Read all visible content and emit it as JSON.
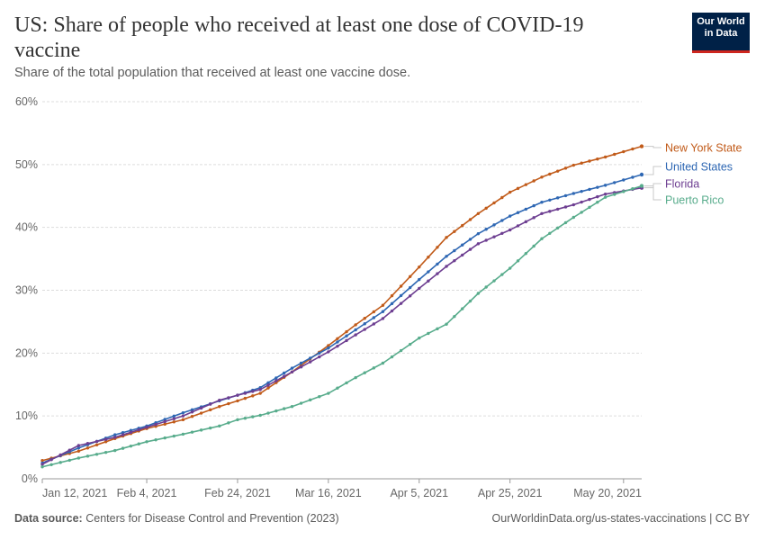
{
  "header": {
    "title": "US: Share of people who received at least one dose of COVID-19 vaccine",
    "subtitle": "Share of the total population that received at least one vaccine dose.",
    "logo_line1": "Our World",
    "logo_line2": "in Data"
  },
  "footer": {
    "source_label": "Data source:",
    "source_text": "Centers for Disease Control and Prevention (2023)",
    "url_text": "OurWorldinData.org/us-states-vaccinations | CC BY"
  },
  "colors": {
    "new_york_state": "#c15b1a",
    "united_states": "#2e67b3",
    "florida": "#6d3e91",
    "puerto_rico": "#58ac8c",
    "grid": "#dddddd",
    "axis_text": "#666666"
  },
  "chart_data": {
    "type": "line",
    "title": "US: Share of people who received at least one dose of COVID-19 vaccine",
    "subtitle": "Share of the total population that received at least one vaccine dose.",
    "x_start_date": "2021-01-12",
    "x_end_date": "2021-05-24",
    "xticks": [
      "Jan 12, 2021",
      "Feb 4, 2021",
      "Feb 24, 2021",
      "Mar 16, 2021",
      "Apr 5, 2021",
      "Apr 25, 2021",
      "May 20, 2021"
    ],
    "yticks": [
      "0%",
      "10%",
      "20%",
      "30%",
      "40%",
      "50%",
      "60%"
    ],
    "ylim": [
      0,
      60
    ],
    "y_unit": "%",
    "grid": "horizontal dashed",
    "legend": "line-end labels at right",
    "series": [
      {
        "name": "New York State",
        "color": "#c15b1a",
        "points": [
          [
            "2021-01-12",
            2.9
          ],
          [
            "2021-01-20",
            4.4
          ],
          [
            "2021-01-28",
            6.4
          ],
          [
            "2021-02-04",
            8.0
          ],
          [
            "2021-02-12",
            9.4
          ],
          [
            "2021-02-20",
            11.5
          ],
          [
            "2021-02-24",
            12.4
          ],
          [
            "2021-03-01",
            13.6
          ],
          [
            "2021-03-08",
            17.0
          ],
          [
            "2021-03-16",
            21.2
          ],
          [
            "2021-03-22",
            24.5
          ],
          [
            "2021-03-28",
            27.6
          ],
          [
            "2021-04-05",
            33.7
          ],
          [
            "2021-04-11",
            38.4
          ],
          [
            "2021-04-18",
            42.2
          ],
          [
            "2021-04-25",
            45.6
          ],
          [
            "2021-05-02",
            48.0
          ],
          [
            "2021-05-09",
            49.9
          ],
          [
            "2021-05-16",
            51.2
          ],
          [
            "2021-05-24",
            52.9
          ]
        ]
      },
      {
        "name": "United States",
        "color": "#2e67b3",
        "points": [
          [
            "2021-01-12",
            2.5
          ],
          [
            "2021-01-20",
            4.9
          ],
          [
            "2021-01-28",
            7.0
          ],
          [
            "2021-02-04",
            8.4
          ],
          [
            "2021-02-12",
            10.5
          ],
          [
            "2021-02-20",
            12.4
          ],
          [
            "2021-02-24",
            13.3
          ],
          [
            "2021-03-01",
            14.5
          ],
          [
            "2021-03-08",
            17.6
          ],
          [
            "2021-03-16",
            20.8
          ],
          [
            "2021-03-22",
            23.7
          ],
          [
            "2021-03-28",
            26.6
          ],
          [
            "2021-04-05",
            31.7
          ],
          [
            "2021-04-11",
            35.4
          ],
          [
            "2021-04-18",
            39.0
          ],
          [
            "2021-04-25",
            41.8
          ],
          [
            "2021-05-02",
            44.0
          ],
          [
            "2021-05-09",
            45.4
          ],
          [
            "2021-05-16",
            46.7
          ],
          [
            "2021-05-24",
            48.4
          ]
        ]
      },
      {
        "name": "Florida",
        "color": "#6d3e91",
        "points": [
          [
            "2021-01-12",
            2.3
          ],
          [
            "2021-01-20",
            5.3
          ],
          [
            "2021-01-28",
            6.6
          ],
          [
            "2021-02-04",
            8.2
          ],
          [
            "2021-02-12",
            10.0
          ],
          [
            "2021-02-20",
            12.5
          ],
          [
            "2021-02-24",
            13.3
          ],
          [
            "2021-03-01",
            14.2
          ],
          [
            "2021-03-08",
            17.0
          ],
          [
            "2021-03-16",
            20.2
          ],
          [
            "2021-03-22",
            22.9
          ],
          [
            "2021-03-28",
            25.5
          ],
          [
            "2021-04-05",
            30.3
          ],
          [
            "2021-04-11",
            33.8
          ],
          [
            "2021-04-18",
            37.4
          ],
          [
            "2021-04-25",
            39.6
          ],
          [
            "2021-05-02",
            42.2
          ],
          [
            "2021-05-09",
            43.6
          ],
          [
            "2021-05-16",
            45.3
          ],
          [
            "2021-05-24",
            46.3
          ]
        ]
      },
      {
        "name": "Puerto Rico",
        "color": "#58ac8c",
        "points": [
          [
            "2021-01-12",
            1.9
          ],
          [
            "2021-01-20",
            3.3
          ],
          [
            "2021-01-28",
            4.5
          ],
          [
            "2021-02-04",
            5.9
          ],
          [
            "2021-02-12",
            7.1
          ],
          [
            "2021-02-20",
            8.4
          ],
          [
            "2021-02-24",
            9.4
          ],
          [
            "2021-03-01",
            10.1
          ],
          [
            "2021-03-08",
            11.5
          ],
          [
            "2021-03-16",
            13.6
          ],
          [
            "2021-03-22",
            16.1
          ],
          [
            "2021-03-28",
            18.4
          ],
          [
            "2021-04-05",
            22.4
          ],
          [
            "2021-04-11",
            24.6
          ],
          [
            "2021-04-18",
            29.5
          ],
          [
            "2021-04-25",
            33.5
          ],
          [
            "2021-05-02",
            38.2
          ],
          [
            "2021-05-09",
            41.6
          ],
          [
            "2021-05-16",
            44.8
          ],
          [
            "2021-05-24",
            46.6
          ]
        ]
      }
    ]
  }
}
